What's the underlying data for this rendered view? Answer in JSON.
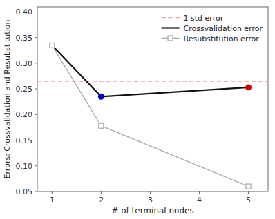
{
  "chart_data": {
    "type": "line",
    "x_label": "# of terminal nodes",
    "y_label": "Errors: Crossvalidation and Resubstitution",
    "x": [
      1,
      2,
      5
    ],
    "series": [
      {
        "name": "1 std error",
        "type": "hline",
        "color": "#f0a0a0",
        "line_style": "dashed",
        "value": 0.265
      },
      {
        "name": "Crossvalidation error",
        "color": "#111111",
        "line_style": "solid",
        "values": [
          0.335,
          0.235,
          0.253
        ]
      },
      {
        "name": "Resubstitution error",
        "color": "#aaaaaa",
        "line_style": "solid",
        "marker": "square",
        "values": [
          0.335,
          0.178,
          0.06
        ]
      }
    ],
    "highlight_points": [
      {
        "x": 2,
        "y": 0.235,
        "color": "#0000cc"
      },
      {
        "x": 5,
        "y": 0.253,
        "color": "#cc0000"
      }
    ],
    "xlim": [
      0.7,
      5.4
    ],
    "ylim": [
      0.05,
      0.41
    ],
    "xticks": [
      1,
      2,
      3,
      4,
      5
    ],
    "yticks": [
      0.05,
      {
        "value": 0.1,
        "label": "0.10"
      },
      0.15,
      {
        "value": 0.2,
        "label": "0.20"
      },
      0.25,
      {
        "value": 0.3,
        "label": "0.30"
      },
      0.35,
      {
        "value": 0.4,
        "label": "0.40"
      }
    ],
    "grid": false,
    "legend": "upper-right"
  }
}
